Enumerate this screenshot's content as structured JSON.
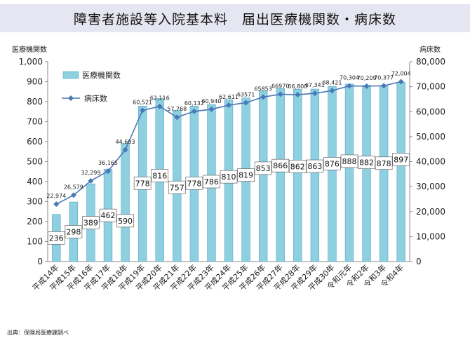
{
  "title": "障害者施設等入院基本料　届出医療機関数・病床数",
  "source": "出典：保険局医療課調べ",
  "chart_data": {
    "type": "bar",
    "title": "障害者施設等入院基本料　届出医療機関数・病床数",
    "categories": [
      "平成14年",
      "平成15年",
      "平成16年",
      "平成17年",
      "平成18年",
      "平成19年",
      "平成20年",
      "平成21年",
      "平成22年",
      "平成23年",
      "平成24年",
      "平成25年",
      "平成26年",
      "平成27年",
      "平成28年",
      "平成29年",
      "平成30年",
      "令和元年",
      "令和2年",
      "令和3年",
      "令和4年"
    ],
    "left_axis": {
      "label": "医療機関数",
      "range": [
        0,
        1000
      ],
      "ticks": [
        "0",
        "100",
        "200",
        "300",
        "400",
        "500",
        "600",
        "700",
        "800",
        "900",
        "1,000"
      ]
    },
    "right_axis": {
      "label": "病床数",
      "range": [
        0,
        80000
      ],
      "ticks": [
        "0",
        "10,000",
        "20,000",
        "30,000",
        "40,000",
        "50,000",
        "60,000",
        "70,000",
        "80,000"
      ]
    },
    "series": [
      {
        "name": "医療機関数",
        "type": "bar",
        "axis": "left",
        "color": "#8ecfe0",
        "values": [
          236,
          298,
          389,
          462,
          590,
          778,
          816,
          757,
          778,
          786,
          810,
          819,
          853,
          866,
          862,
          863,
          876,
          888,
          882,
          878,
          897
        ],
        "labels": [
          "236",
          "298",
          "389",
          "462",
          "590",
          "778",
          "816",
          "757",
          "778",
          "786",
          "810",
          "819",
          "853",
          "866",
          "862",
          "863",
          "876",
          "888",
          "882",
          "878",
          "897"
        ]
      },
      {
        "name": "病床数",
        "type": "line",
        "axis": "right",
        "color": "#4a78b8",
        "values": [
          22974,
          26579,
          32299,
          36165,
          44693,
          60521,
          62116,
          57768,
          60132,
          60940,
          62611,
          63571,
          65853,
          66970,
          66800,
          67341,
          68421,
          70304,
          70209,
          70377,
          72004
        ],
        "labels": [
          "22,974",
          "26,579",
          "32,299",
          "36,165",
          "44,693",
          "60,521",
          "62,116",
          "57,768",
          "60,132",
          "60,940",
          "62,611",
          "63571",
          "65853",
          "66970",
          "66,800",
          "67,341",
          "68,421",
          "70,304",
          "70,209",
          "70,377",
          "72,004"
        ]
      }
    ],
    "legend": "top-left",
    "grid": false
  }
}
